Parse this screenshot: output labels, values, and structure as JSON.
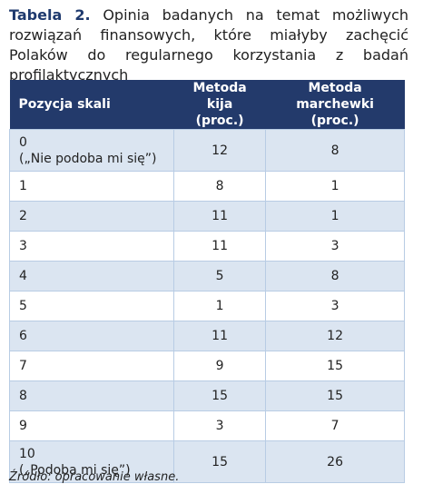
{
  "caption": {
    "label": "Tabela 2.",
    "text": "Opinia badanych na temat możliwych rozwiązań finansowych, które miałyby zachęcić Polaków do regularnego korzystania z badań profilaktycznych"
  },
  "table": {
    "headers": [
      [
        "Pozycja skali"
      ],
      [
        "Metoda",
        "kija (proc.)"
      ],
      [
        "Metoda",
        "marchewki (proc.)"
      ]
    ],
    "rows": [
      {
        "position": "0",
        "note": "(„Nie podoba mi się”)",
        "values": [
          12,
          8
        ]
      },
      {
        "position": "1",
        "values": [
          8,
          1
        ]
      },
      {
        "position": "2",
        "values": [
          11,
          1
        ]
      },
      {
        "position": "3",
        "values": [
          11,
          3
        ]
      },
      {
        "position": "4",
        "values": [
          5,
          8
        ]
      },
      {
        "position": "5",
        "values": [
          1,
          3
        ]
      },
      {
        "position": "6",
        "values": [
          11,
          12
        ]
      },
      {
        "position": "7",
        "values": [
          9,
          15
        ]
      },
      {
        "position": "8",
        "values": [
          15,
          15
        ]
      },
      {
        "position": "9",
        "values": [
          3,
          7
        ]
      },
      {
        "position": "10",
        "note": "(„Podoba mi się”)",
        "values": [
          15,
          26
        ]
      }
    ]
  },
  "source": "Źródło: opracowanie własne."
}
